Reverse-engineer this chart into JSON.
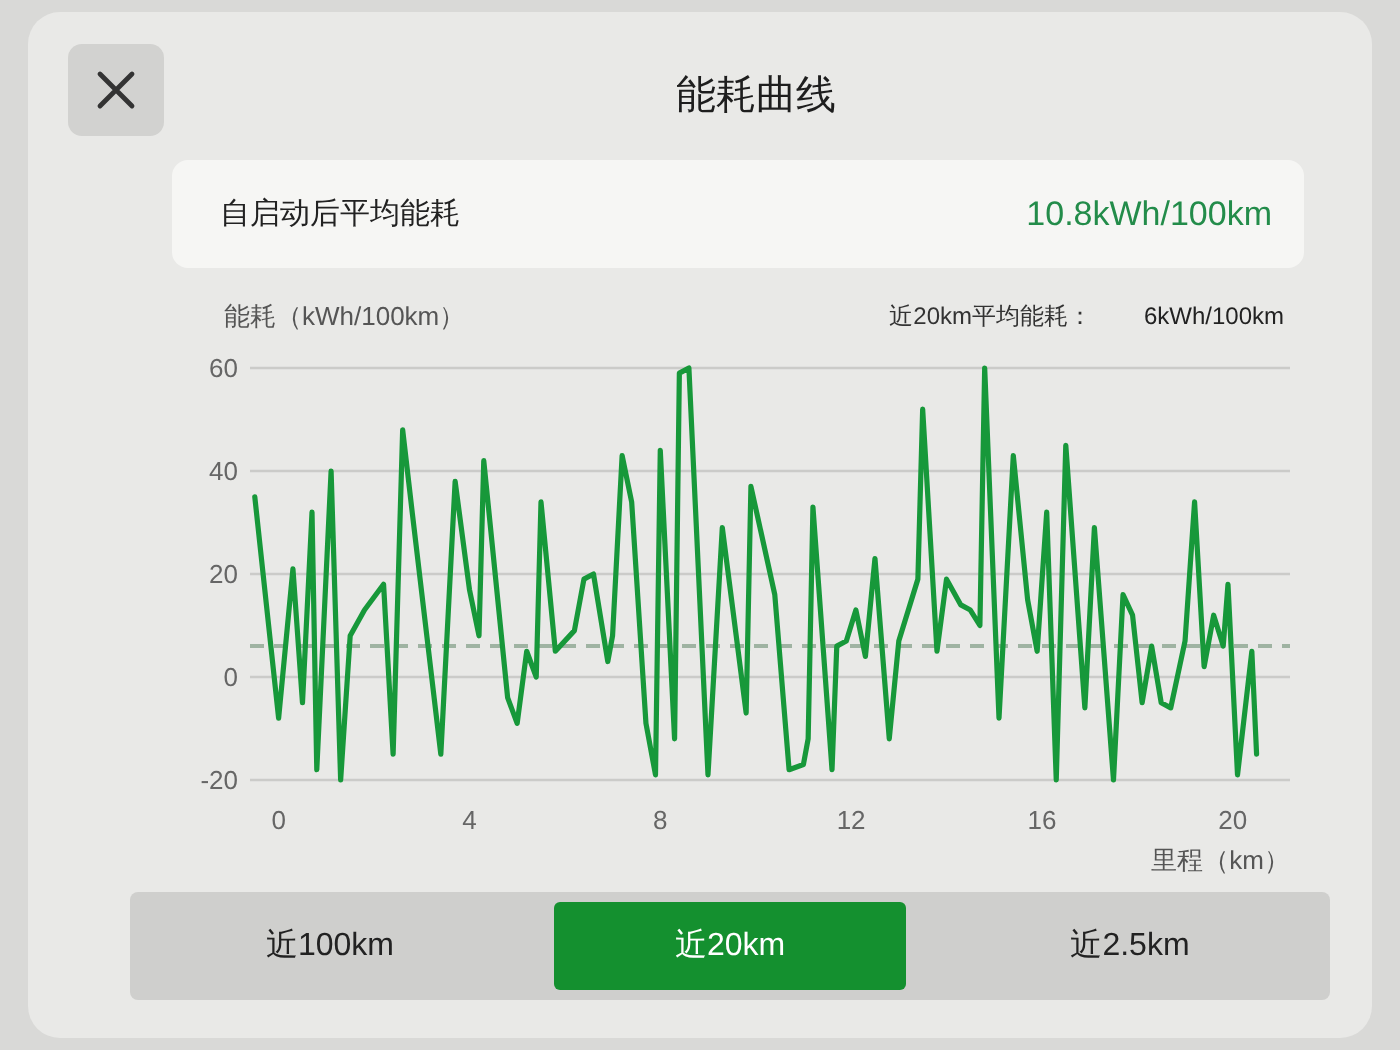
{
  "chart_data": {
    "type": "line",
    "title": "能耗曲线",
    "xlabel": "里程（km）",
    "ylabel": "能耗（kWh/100km）",
    "annotations": [
      "自启动后平均能耗",
      "10.8kWh/100km",
      "近20km平均能耗：",
      "6kWh/100km",
      "近100km",
      "近20km",
      "近2.5km"
    ],
    "x": [
      -0.5,
      0.0,
      0.3,
      0.5,
      0.7,
      0.8,
      1.1,
      1.3,
      1.5,
      1.8,
      2.2,
      2.4,
      2.6,
      2.8,
      3.4,
      3.7,
      4.0,
      4.2,
      4.3,
      4.8,
      5.0,
      5.2,
      5.4,
      5.5,
      5.8,
      6.2,
      6.4,
      6.6,
      6.9,
      7.0,
      7.2,
      7.4,
      7.7,
      7.9,
      8.0,
      8.3,
      8.4,
      8.6,
      9.0,
      9.3,
      9.8,
      9.9,
      10.4,
      10.7,
      11.0,
      11.1,
      11.2,
      11.6,
      11.7,
      11.9,
      12.1,
      12.3,
      12.5,
      12.8,
      13.0,
      13.4,
      13.5,
      13.8,
      14.0,
      14.3,
      14.5,
      14.7,
      14.8,
      15.1,
      15.4,
      15.7,
      15.9,
      16.1,
      16.3,
      16.5,
      16.9,
      17.1,
      17.5,
      17.7,
      17.9,
      18.1,
      18.3,
      18.5,
      18.7,
      19.0,
      19.2,
      19.4,
      19.6,
      19.8,
      19.9,
      20.1,
      20.4,
      20.5
    ],
    "series": [
      {
        "color": "#17983a",
        "values": [
          35,
          -8,
          21,
          -5,
          32,
          -18,
          40,
          -20,
          8,
          13,
          18,
          -15,
          48,
          32,
          -15,
          38,
          17,
          8,
          42,
          -4,
          -9,
          5,
          0,
          34,
          5,
          9,
          19,
          20,
          3,
          8,
          43,
          34,
          -9,
          -19,
          44,
          -12,
          59,
          60,
          -19,
          29,
          -7,
          37,
          16,
          -18,
          -17,
          -12,
          33,
          -18,
          6,
          7,
          13,
          4,
          23,
          -12,
          7,
          19,
          52,
          5,
          19,
          14,
          13,
          10,
          60,
          -8,
          43,
          15,
          5,
          32,
          -20,
          45,
          -6,
          29,
          -20,
          16,
          12,
          -5,
          6,
          -5,
          -6,
          7,
          34,
          2,
          12,
          6,
          18,
          -19,
          5,
          -15
        ]
      }
    ],
    "xlim": [
      -0.6,
      21.2
    ],
    "xticks": [
      0,
      4,
      8,
      12,
      16,
      20
    ],
    "ylim": [
      -20,
      60
    ],
    "yticks": [
      -20,
      0,
      20,
      40,
      60
    ],
    "grid": "y",
    "line_style": "solid",
    "ref_lines": [
      {
        "axis": "y",
        "value": 6,
        "color": "#9fb3a2",
        "line_style": "dashed"
      }
    ]
  }
}
